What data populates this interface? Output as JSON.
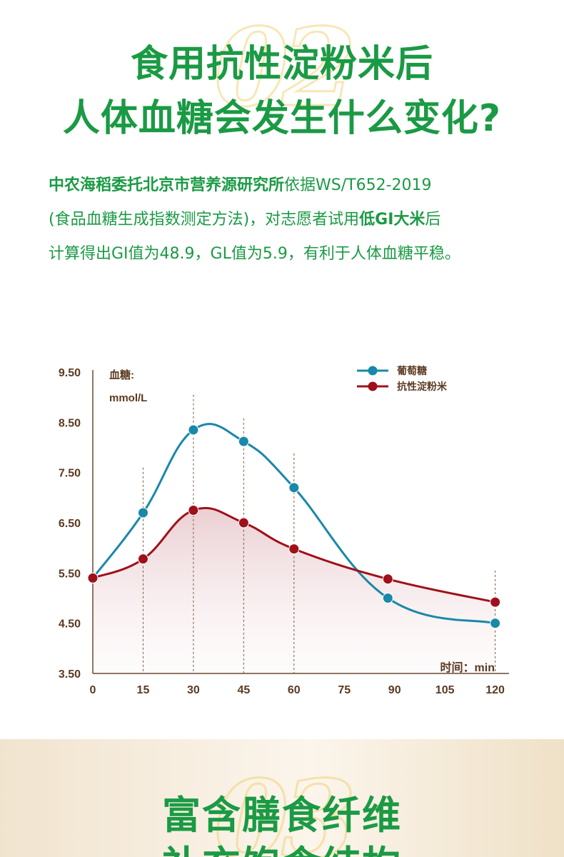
{
  "section1": {
    "headline_lines": [
      "食用抗性淀粉米后",
      "人体血糖会发生什么变化?"
    ],
    "intro": {
      "line1_bold": "中农海稻委托北京市营养源研究所",
      "line1_rest": "依据WS/T652-2019",
      "line2_pre": "(食品血糖生成指数测定方法)，对志愿者试用",
      "line2_bold": "低GI大米",
      "line2_post": "后",
      "line3": "计算得出GI值为48.9，GL值为5.9，有利于人体血糖平稳。"
    }
  },
  "chart_data": {
    "type": "line",
    "ylabel_line1": "血糖:",
    "ylabel_line2": "mmol/L",
    "xlabel": "时间：min",
    "x_ticks": [
      0,
      15,
      30,
      45,
      60,
      75,
      90,
      105,
      120
    ],
    "y_ticks": [
      "3.50",
      "4.50",
      "5.50",
      "6.50",
      "7.50",
      "8.50",
      "9.50"
    ],
    "xlim": [
      0,
      122
    ],
    "ylim": [
      3.5,
      9.8
    ],
    "series": [
      {
        "name": "葡萄糖",
        "color": "#1a88a8",
        "x": [
          0,
          15,
          30,
          45,
          60,
          88,
          120
        ],
        "y": [
          5.4,
          6.7,
          8.35,
          8.12,
          7.2,
          5.0,
          4.5
        ]
      },
      {
        "name": "抗性淀粉米",
        "color": "#a0101a",
        "x": [
          0,
          15,
          30,
          45,
          60,
          88,
          120
        ],
        "y": [
          5.4,
          5.78,
          6.75,
          6.5,
          5.98,
          5.38,
          4.92
        ]
      }
    ],
    "dashed_markers": [
      {
        "x": 15,
        "y_top": 7.6
      },
      {
        "x": 30,
        "y_top": 9.05
      },
      {
        "x": 45,
        "y_top": 8.58
      },
      {
        "x": 60,
        "y_top": 7.88
      },
      {
        "x": 120,
        "y_top": 5.55
      }
    ],
    "legend_position": "top-right",
    "grid": false
  },
  "section2": {
    "headline_lines": [
      "富含膳食纤维",
      "补充饱食结构"
    ]
  }
}
